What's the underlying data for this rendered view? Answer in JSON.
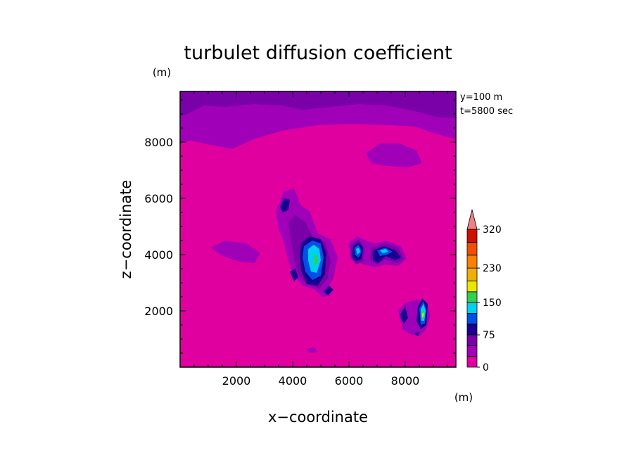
{
  "chart_data": {
    "type": "contour",
    "title": "turbulet diffusion coefficient",
    "xlabel": "x−coordinate",
    "ylabel": "z−coordinate",
    "x_unit": "(m)",
    "y_unit": "(m)",
    "annotation_y": "y=100  m",
    "annotation_t": "t=5800  sec",
    "xlim": [
      0,
      9800
    ],
    "ylim": [
      0,
      9800
    ],
    "xticks": [
      2000,
      4000,
      6000,
      8000
    ],
    "yticks": [
      2000,
      4000,
      6000,
      8000
    ],
    "xtick_labels": [
      "2000",
      "4000",
      "6000",
      "8000"
    ],
    "ytick_labels": [
      "2000",
      "4000",
      "6000",
      "8000"
    ],
    "colorbar": {
      "levels": [
        0,
        25,
        50,
        75,
        100,
        125,
        150,
        175,
        200,
        230,
        260,
        290,
        320
      ],
      "colors": [
        "#e000a0",
        "#a000b8",
        "#7a00a8",
        "#1a0090",
        "#0050e8",
        "#00d0f0",
        "#30d050",
        "#e8e800",
        "#f0b000",
        "#ff8000",
        "#f05000",
        "#d01000"
      ],
      "extend_color": "#f08080",
      "tick_labels": [
        "0",
        "75",
        "150",
        "230",
        "320"
      ],
      "tick_values": [
        0,
        75,
        150,
        230,
        320
      ]
    },
    "features": [
      {
        "name": "top-band",
        "level": 25
      },
      {
        "name": "center-core",
        "x": 4800,
        "z": 4000,
        "peak": 150
      },
      {
        "name": "left-cell",
        "x": 3700,
        "z": 5900,
        "peak": 75
      },
      {
        "name": "mid-cell",
        "x": 6500,
        "z": 4200,
        "peak": 150
      },
      {
        "name": "right-cell",
        "x": 7300,
        "z": 4000,
        "peak": 150
      },
      {
        "name": "lower-right-core",
        "x": 8700,
        "z": 1900,
        "peak": 175
      },
      {
        "name": "lower-cell",
        "x": 8100,
        "z": 1900,
        "peak": 75
      }
    ]
  }
}
